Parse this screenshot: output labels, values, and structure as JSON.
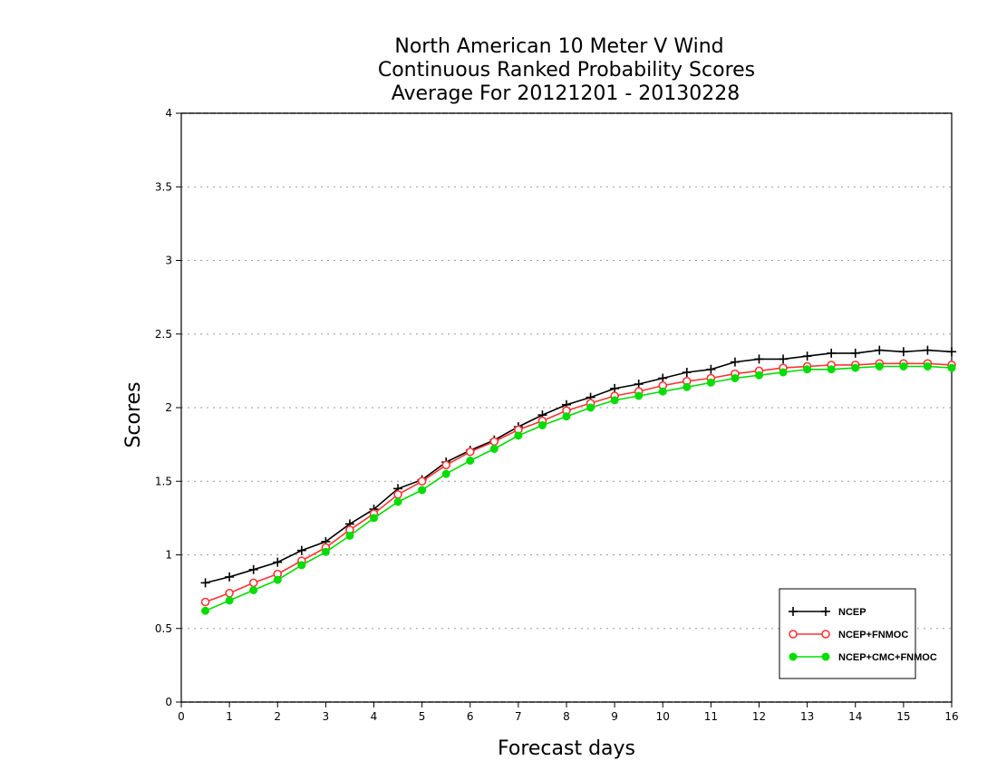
{
  "chart_data": {
    "type": "line",
    "title": [
      "North American 10 Meter V Wind",
      "Continuous Ranked Probability Scores",
      "Average For 20121201 - 20130228"
    ],
    "xlabel": "Forecast days",
    "ylabel": "Scores",
    "xlim": [
      0,
      16
    ],
    "ylim": [
      0,
      4
    ],
    "x_ticks": [
      0,
      1,
      2,
      3,
      4,
      5,
      6,
      7,
      8,
      9,
      10,
      11,
      12,
      13,
      14,
      15,
      16
    ],
    "y_ticks": [
      0,
      0.5,
      1,
      1.5,
      2,
      2.5,
      3,
      3.5,
      4
    ],
    "y_tick_labels": [
      "0",
      "0.5",
      "1",
      "1.5",
      "2",
      "2.5",
      "3",
      "3.5",
      "4"
    ],
    "grid": "horizontal-dotted",
    "legend_position": "bottom-right",
    "x": [
      0.5,
      1,
      1.5,
      2,
      2.5,
      3,
      3.5,
      4,
      4.5,
      5,
      5.5,
      6,
      6.5,
      7,
      7.5,
      8,
      8.5,
      9,
      9.5,
      10,
      10.5,
      11,
      11.5,
      12,
      12.5,
      13,
      13.5,
      14,
      14.5,
      15,
      15.5,
      16
    ],
    "series": [
      {
        "name": "NCEP",
        "color": "#000000",
        "marker": "plus",
        "values": [
          0.81,
          0.85,
          0.9,
          0.95,
          1.03,
          1.09,
          1.21,
          1.31,
          1.45,
          1.51,
          1.63,
          1.71,
          1.78,
          1.87,
          1.95,
          2.02,
          2.07,
          2.13,
          2.16,
          2.2,
          2.24,
          2.26,
          2.31,
          2.33,
          2.33,
          2.35,
          2.37,
          2.37,
          2.39,
          2.38,
          2.39,
          2.38
        ]
      },
      {
        "name": "NCEP+FNMOC",
        "color": "#ff3333",
        "marker": "open-circle",
        "values": [
          0.68,
          0.74,
          0.81,
          0.87,
          0.96,
          1.05,
          1.17,
          1.28,
          1.41,
          1.5,
          1.61,
          1.7,
          1.77,
          1.85,
          1.91,
          1.98,
          2.03,
          2.08,
          2.11,
          2.15,
          2.18,
          2.2,
          2.23,
          2.25,
          2.27,
          2.28,
          2.29,
          2.29,
          2.3,
          2.3,
          2.3,
          2.29
        ]
      },
      {
        "name": "NCEP+CMC+FNMOC",
        "color": "#00dd00",
        "marker": "filled-circle",
        "values": [
          0.62,
          0.69,
          0.76,
          0.83,
          0.93,
          1.02,
          1.13,
          1.25,
          1.36,
          1.44,
          1.55,
          1.64,
          1.72,
          1.81,
          1.88,
          1.94,
          2.0,
          2.05,
          2.08,
          2.11,
          2.14,
          2.17,
          2.2,
          2.22,
          2.24,
          2.26,
          2.26,
          2.27,
          2.28,
          2.28,
          2.28,
          2.27
        ]
      }
    ]
  }
}
